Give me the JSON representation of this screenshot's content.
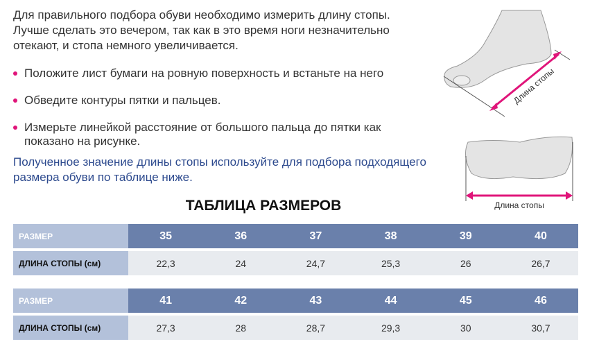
{
  "intro": [
    "Для правильного подбора обуви необходимо измерить длину стопы.",
    "Лучше сделать это вечером, так как в это время ноги незначительно",
    "отекают, и стопа немного увеличивается."
  ],
  "bullets": [
    "Положите лист бумаги на ровную поверхность и встаньте на него",
    "Обведите контуры пятки и пальцев.",
    "Измерьте линейкой расстояние от большого пальца до пятки как показано на рисунке."
  ],
  "note": "Полученное значение длины стопы используйте для подбора подходящего размера обуви по таблице ниже.",
  "illustration_label_side": "Длина стопы",
  "illustration_label_sole": "Длина стопы",
  "table_title": "ТАБЛИЦА РАЗМЕРОВ",
  "table": [
    {
      "size_label": "РАЗМЕР",
      "sizes": [
        "35",
        "36",
        "37",
        "38",
        "39",
        "40"
      ],
      "length_label": "ДЛИНА СТОПЫ (см)",
      "lengths": [
        "22,3",
        "24",
        "24,7",
        "25,3",
        "26",
        "26,7"
      ]
    },
    {
      "size_label": "РАЗМЕР",
      "sizes": [
        "41",
        "42",
        "43",
        "44",
        "45",
        "46"
      ],
      "length_label": "ДЛИНА СТОПЫ (см)",
      "lengths": [
        "27,3",
        "28",
        "28,7",
        "29,3",
        "30",
        "30,7"
      ]
    }
  ],
  "colors": {
    "accent": "#e0157a",
    "header": "#6a80ab",
    "label": "#b3c1da",
    "note": "#2d4a8e"
  }
}
